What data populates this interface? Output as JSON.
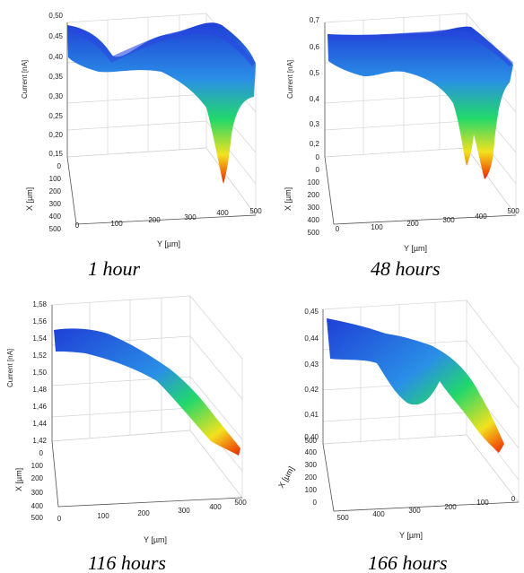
{
  "colors": {
    "low": "#1f3fd6",
    "mid": "#22d86a",
    "high": "#f02000"
  },
  "chart_data": [
    {
      "type": "surface3d",
      "caption": "1 hour",
      "zlabel": "Current [nA]",
      "xlabel": "X [µm]",
      "ylabel": "Y [µm]",
      "z_ticks": [
        "0,50",
        "0,45",
        "0,40",
        "0,35",
        "0,30",
        "0,25",
        "0,20",
        "0,15"
      ],
      "x_ticks": [
        "0",
        "100",
        "200",
        "300",
        "400",
        "500"
      ],
      "y_ticks": [
        "0",
        "100",
        "200",
        "300",
        "400",
        "500"
      ],
      "zlim": [
        0.15,
        0.5
      ],
      "profile_y": [
        0,
        50,
        100,
        150,
        200,
        250,
        300,
        350,
        400,
        450,
        500
      ],
      "profile_current": [
        0.47,
        0.45,
        0.43,
        0.41,
        0.42,
        0.46,
        0.47,
        0.44,
        0.3,
        0.2,
        0.42
      ]
    },
    {
      "type": "surface3d",
      "caption": "48 hours",
      "zlabel": "Current [nA]",
      "xlabel": "X [µm]",
      "ylabel": "Y [µm]",
      "z_ticks": [
        "0,7",
        "0,6",
        "0,5",
        "0,4",
        "0,3",
        "0,2",
        "0"
      ],
      "x_ticks": [
        "0",
        "100",
        "200",
        "300",
        "400",
        "500"
      ],
      "y_ticks": [
        "0",
        "100",
        "200",
        "300",
        "400",
        "500"
      ],
      "zlim": [
        0.15,
        0.7
      ],
      "profile_y": [
        0,
        50,
        100,
        150,
        200,
        250,
        300,
        350,
        400,
        450,
        500
      ],
      "profile_current": [
        0.63,
        0.62,
        0.6,
        0.62,
        0.63,
        0.63,
        0.64,
        0.5,
        0.22,
        0.3,
        0.45
      ]
    },
    {
      "type": "surface3d",
      "caption": "116 hours",
      "zlabel": "Current [nA]",
      "xlabel": "X [µm]",
      "ylabel": "Y [µm]",
      "z_ticks": [
        "1,58",
        "1,56",
        "1,54",
        "1,52",
        "1,50",
        "1,48",
        "1,46",
        "1,44",
        "1,42"
      ],
      "x_ticks": [
        "0",
        "100",
        "200",
        "300",
        "400",
        "500"
      ],
      "y_ticks": [
        "0",
        "100",
        "200",
        "300",
        "400",
        "500"
      ],
      "zlim": [
        1.42,
        1.58
      ],
      "profile_y": [
        0,
        50,
        100,
        150,
        200,
        250,
        300,
        350,
        400,
        450,
        500
      ],
      "profile_current": [
        1.55,
        1.55,
        1.54,
        1.53,
        1.52,
        1.51,
        1.5,
        1.48,
        1.46,
        1.44,
        1.43
      ]
    },
    {
      "type": "surface3d",
      "caption": "166 hours",
      "zlabel": "Current [nA]",
      "xlabel": "X [µm]",
      "ylabel": "Y [µm]",
      "z_ticks": [
        "0,45",
        "0,44",
        "0,43",
        "0,42",
        "0,41",
        "0,40"
      ],
      "x_ticks": [
        "500",
        "400",
        "300",
        "200",
        "100",
        "0"
      ],
      "y_ticks": [
        "500",
        "400",
        "300",
        "200",
        "100",
        "0"
      ],
      "zlim": [
        0.4,
        0.45
      ],
      "profile_y": [
        500,
        450,
        400,
        350,
        300,
        250,
        200,
        150,
        100,
        50,
        0
      ],
      "profile_current": [
        0.444,
        0.44,
        0.436,
        0.43,
        0.424,
        0.426,
        0.428,
        0.424,
        0.418,
        0.412,
        0.404
      ]
    }
  ]
}
